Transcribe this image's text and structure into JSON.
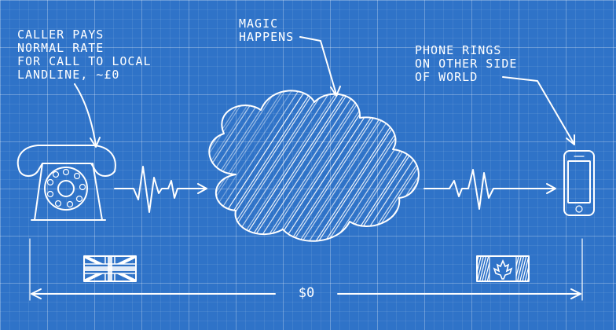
{
  "labels": {
    "caller": [
      "CALLER PAYS",
      "NORMAL RATE",
      "FOR CALL TO LOCAL",
      "LANDLINE, ~£0"
    ],
    "magic": [
      "MAGIC",
      "HAPPENS"
    ],
    "rings": [
      "PHONE RINGS",
      "ON OTHER SIDE",
      "OF WORLD"
    ]
  },
  "total_cost": "$0",
  "icons": {
    "left_phone": "rotary-phone-icon",
    "cloud": "cloud-icon",
    "right_phone": "smartphone-icon",
    "left_flag": "uk-flag-icon",
    "right_flag": "canada-flag-icon"
  },
  "colors": {
    "background": "#2f73c8",
    "lines": "#ffffff"
  }
}
